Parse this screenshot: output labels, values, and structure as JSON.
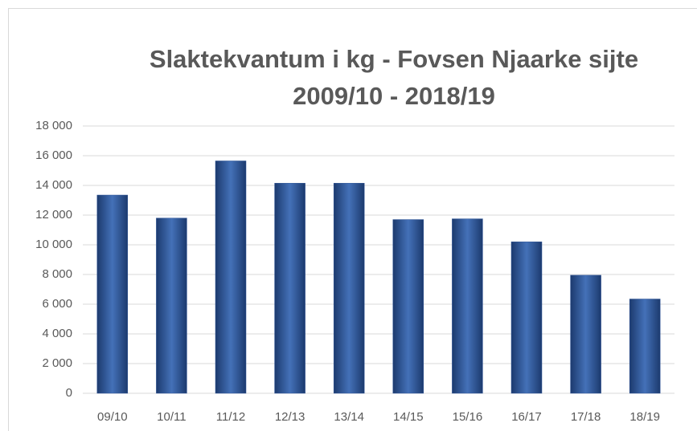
{
  "chart_data": {
    "type": "bar",
    "title": [
      "Slaktekvantum i kg - Fovsen Njaarke sijte",
      "2009/10 - 2018/19"
    ],
    "categories": [
      "09/10",
      "10/11",
      "11/12",
      "12/13",
      "13/14",
      "14/15",
      "15/16",
      "16/17",
      "17/18",
      "18/19"
    ],
    "values": [
      13350,
      11800,
      15650,
      14150,
      14150,
      11700,
      11750,
      10200,
      7950,
      6350
    ],
    "color": "#2f5597",
    "ylim": [
      0,
      18000
    ],
    "yticks": [
      0,
      {
        "value": 2000,
        "label": "2 000"
      },
      {
        "value": 4000,
        "label": "4 000"
      },
      {
        "value": 6000,
        "label": "6 000"
      },
      {
        "value": 8000,
        "label": "8 000"
      },
      {
        "value": 10000,
        "label": "10 000"
      },
      {
        "value": 12000,
        "label": "12 000"
      },
      {
        "value": 14000,
        "label": "14 000"
      },
      {
        "value": 16000,
        "label": "16 000"
      },
      {
        "value": 18000,
        "label": "18 000"
      }
    ],
    "grid": true
  }
}
